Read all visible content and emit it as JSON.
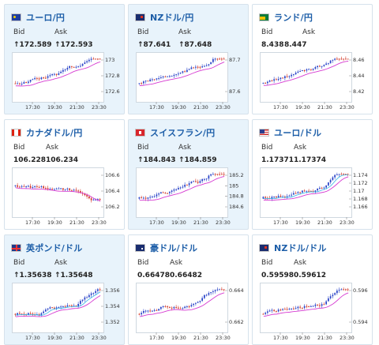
{
  "labels": {
    "bid": "Bid",
    "ask": "Ask"
  },
  "colors": {
    "up": "#2b45c8",
    "down": "#d23a2a",
    "ma_magenta": "#d63ad1",
    "ma_cyan": "#34b4e6",
    "title": "#1d5ea8"
  },
  "x_ticks": [
    "17:30",
    "19:30",
    "21:30",
    "23:30"
  ],
  "cards": [
    {
      "title": "ユーロ/円",
      "flag": "eu-flag-icon",
      "bid": "↑172.589",
      "ask": "↑172.593",
      "chart_data": {
        "type": "line",
        "trend": "up",
        "y_ticks": [
          "173",
          "172.8",
          "172.6"
        ],
        "ylim": [
          172.5,
          173.08
        ]
      }
    },
    {
      "title": "NZドル/円",
      "flag": "nz-flag-icon",
      "bid": "↑87.641",
      "ask": "↑87.648",
      "chart_data": {
        "type": "line",
        "trend": "up",
        "y_ticks": [
          "87.7",
          "87.6"
        ],
        "ylim": [
          87.55,
          87.76
        ]
      }
    },
    {
      "title": "ランド/円",
      "flag": "za-flag-icon",
      "bid": "8.438",
      "ask": "8.447",
      "chart_data": {
        "type": "line",
        "trend": "up",
        "y_ticks": [
          "8.46",
          "8.44",
          "8.42"
        ],
        "ylim": [
          8.415,
          8.468
        ]
      }
    },
    {
      "title": "カナダドル/円",
      "flag": "ca-flag-icon",
      "bid": "106.228",
      "ask": "106.234",
      "chart_data": {
        "type": "line",
        "trend": "down",
        "y_ticks": [
          "106.6",
          "106.4",
          "106.2"
        ],
        "ylim": [
          106.15,
          106.7
        ]
      }
    },
    {
      "title": "スイスフラン/円",
      "flag": "ch-flag-icon",
      "bid": "↑184.843",
      "ask": "↑184.859",
      "chart_data": {
        "type": "line",
        "trend": "up",
        "y_ticks": [
          "185.2",
          "185",
          "184.8",
          "184.6"
        ],
        "ylim": [
          184.55,
          185.3
        ]
      }
    },
    {
      "title": "ユーロ/ドル",
      "flag": "us-flag-icon",
      "bid": "1.17371",
      "ask": "1.17374",
      "chart_data": {
        "type": "line",
        "trend": "up",
        "y_ticks": [
          "1.174",
          "1.172",
          "1.17",
          "1.168",
          "1.166"
        ],
        "ylim": [
          1.1655,
          1.1748
        ]
      }
    },
    {
      "title": "英ポンド/ドル",
      "flag": "gb-flag-icon",
      "bid": "↑1.35638",
      "ask": "↑1.35648",
      "chart_data": {
        "type": "line",
        "trend": "up",
        "y_ticks": [
          "1.356",
          "1.354",
          "1.352"
        ],
        "ylim": [
          1.3505,
          1.3575
        ]
      }
    },
    {
      "title": "豪ドル/ドル",
      "flag": "au-flag-icon",
      "bid": "0.66478",
      "ask": "0.66482",
      "chart_data": {
        "type": "line",
        "trend": "up",
        "y_ticks": [
          "0.664",
          "0.662"
        ],
        "ylim": [
          0.6605,
          0.6652
        ]
      }
    },
    {
      "title": "NZドル/ドル",
      "flag": "nz-flag-icon",
      "bid": "0.59598",
      "ask": "0.59612",
      "chart_data": {
        "type": "line",
        "trend": "up",
        "y_ticks": [
          "0.596",
          "0.594"
        ],
        "ylim": [
          0.5928,
          0.5966
        ]
      }
    }
  ]
}
